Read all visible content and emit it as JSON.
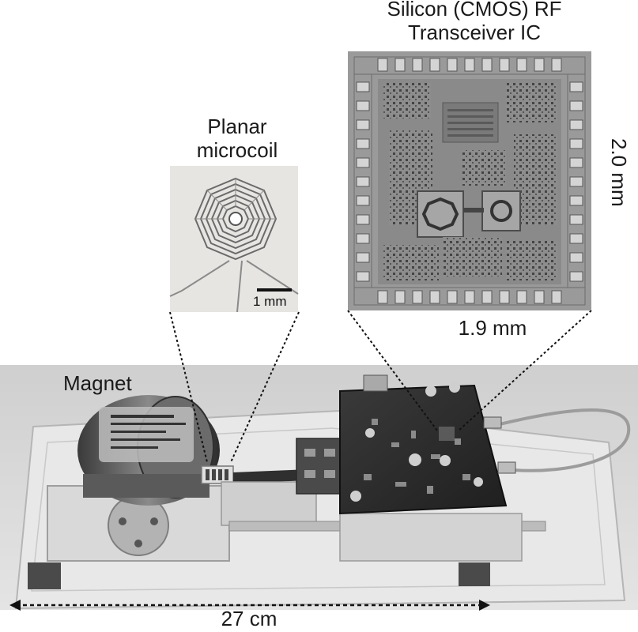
{
  "labels": {
    "chip_title": "Silicon (CMOS) RF Transceiver IC",
    "chip_title_line1": "Silicon (CMOS) RF",
    "chip_title_line2": "Transceiver IC",
    "chip_height": "2.0 mm",
    "chip_width": "1.9 mm",
    "coil_title_line1": "Planar",
    "coil_title_line2": "microcoil",
    "coil_scale": "1 mm",
    "magnet": "Magnet",
    "setup_length": "27 cm"
  },
  "colors": {
    "background": "#ffffff",
    "text": "#1a1a1a",
    "photo_background": "#d6d6d6",
    "chip_background": "#9a9a9a"
  }
}
